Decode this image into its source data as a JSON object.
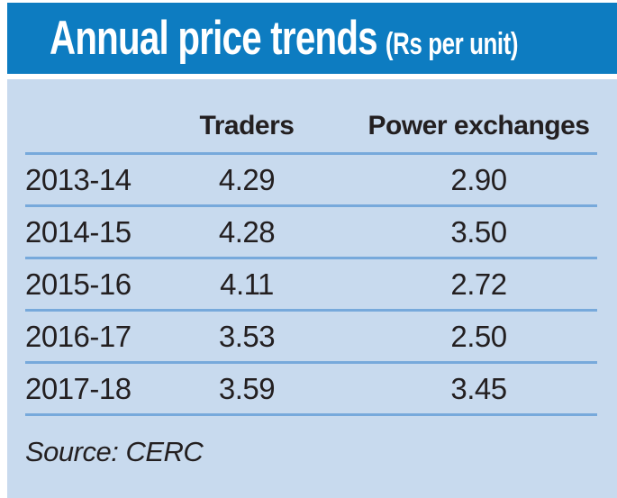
{
  "title": {
    "main": "Annual price trends",
    "unit": "(Rs per unit)"
  },
  "table": {
    "columns": [
      "Traders",
      "Power exchanges"
    ],
    "rows": [
      {
        "year": "2013-14",
        "traders": "4.29",
        "exchanges": "2.90"
      },
      {
        "year": "2014-15",
        "traders": "4.28",
        "exchanges": "3.50"
      },
      {
        "year": "2015-16",
        "traders": "4.11",
        "exchanges": "2.72"
      },
      {
        "year": "2016-17",
        "traders": "3.53",
        "exchanges": "2.50"
      },
      {
        "year": "2017-18",
        "traders": "3.59",
        "exchanges": "3.45"
      }
    ]
  },
  "source": "Source: CERC",
  "colors": {
    "header_blue": "#0d7cc1",
    "panel_blue": "#c8daee",
    "line_blue": "#77a9db",
    "text_dark": "#231f20",
    "title_text": "#ffffff"
  },
  "chart_data": {
    "type": "table",
    "title": "Annual price trends (Rs per unit)",
    "categories": [
      "2013-14",
      "2014-15",
      "2015-16",
      "2016-17",
      "2017-18"
    ],
    "series": [
      {
        "name": "Traders",
        "values": [
          4.29,
          4.28,
          4.11,
          3.53,
          3.59
        ]
      },
      {
        "name": "Power exchanges",
        "values": [
          2.9,
          3.5,
          2.72,
          2.5,
          3.45
        ]
      }
    ],
    "source": "Source: CERC",
    "legend_position": "column-headers",
    "grid": "horizontal-row-separators"
  }
}
